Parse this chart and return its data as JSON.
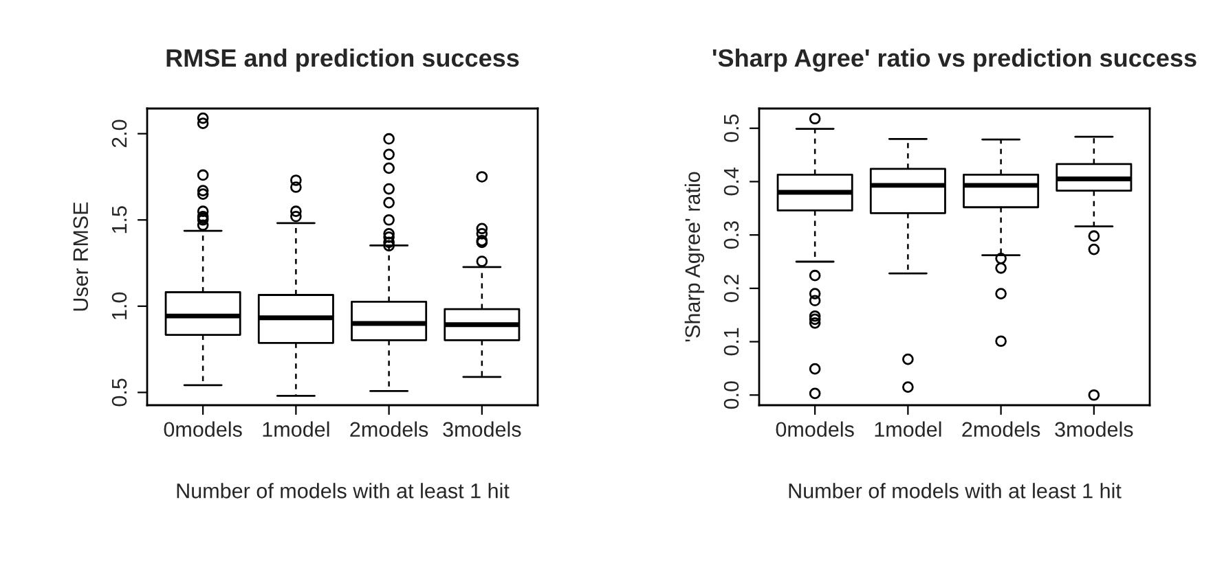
{
  "chart_data": [
    {
      "type": "box",
      "title": "RMSE and prediction success",
      "xlabel": "Number of models with at least 1 hit",
      "ylabel": "User RMSE",
      "categories": [
        "0models",
        "1model",
        "2models",
        "3models"
      ],
      "boxes": [
        {
          "low": 0.542,
          "q1": 0.834,
          "median": 0.943,
          "q3": 1.081,
          "high": 1.437,
          "outliers": [
            2.09,
            2.06,
            1.76,
            1.67,
            1.65,
            1.55,
            1.52,
            1.51,
            1.5,
            1.47
          ]
        },
        {
          "low": 0.48,
          "q1": 0.787,
          "median": 0.933,
          "q3": 1.065,
          "high": 1.482,
          "outliers": [
            1.73,
            1.69,
            1.55,
            1.52
          ]
        },
        {
          "low": 0.508,
          "q1": 0.803,
          "median": 0.9,
          "q3": 1.026,
          "high": 1.352,
          "outliers": [
            1.97,
            1.88,
            1.8,
            1.68,
            1.6,
            1.5,
            1.42,
            1.4,
            1.37,
            1.35
          ]
        },
        {
          "low": 0.59,
          "q1": 0.803,
          "median": 0.893,
          "q3": 0.983,
          "high": 1.227,
          "outliers": [
            1.75,
            1.45,
            1.42,
            1.38,
            1.37,
            1.26
          ]
        }
      ],
      "ylim": [
        0.426,
        2.146
      ],
      "yticks": [
        {
          "value": 0.5,
          "label": "0.5"
        },
        {
          "value": 1.0,
          "label": "1.0"
        },
        {
          "value": 1.5,
          "label": "1.5"
        },
        {
          "value": 2.0,
          "label": "2.0"
        }
      ],
      "grid": false,
      "legend": false
    },
    {
      "type": "box",
      "title": "'Sharp Agree' ratio vs prediction success",
      "xlabel": "Number of models with at least 1 hit",
      "ylabel": "'Sharp Agree' ratio",
      "categories": [
        "0models",
        "1model",
        "2models",
        "3models"
      ],
      "boxes": [
        {
          "low": 0.25,
          "q1": 0.346,
          "median": 0.38,
          "q3": 0.413,
          "high": 0.499,
          "outliers": [
            0.518,
            0.224,
            0.19,
            0.177,
            0.148,
            0.142,
            0.135,
            0.049,
            0.003
          ]
        },
        {
          "low": 0.228,
          "q1": 0.341,
          "median": 0.393,
          "q3": 0.424,
          "high": 0.48,
          "outliers": [
            0.067,
            0.015
          ]
        },
        {
          "low": 0.262,
          "q1": 0.352,
          "median": 0.393,
          "q3": 0.413,
          "high": 0.479,
          "outliers": [
            0.256,
            0.238,
            0.19,
            0.101
          ]
        },
        {
          "low": 0.316,
          "q1": 0.383,
          "median": 0.405,
          "q3": 0.433,
          "high": 0.484,
          "outliers": [
            0.298,
            0.273,
            0.0
          ]
        }
      ],
      "ylim": [
        -0.019,
        0.537
      ],
      "yticks": [
        {
          "value": 0.0,
          "label": "0.0"
        },
        {
          "value": 0.1,
          "label": "0.1"
        },
        {
          "value": 0.2,
          "label": "0.2"
        },
        {
          "value": 0.3,
          "label": "0.3"
        },
        {
          "value": 0.4,
          "label": "0.4"
        },
        {
          "value": 0.5,
          "label": "0.5"
        }
      ],
      "grid": false,
      "legend": false
    }
  ]
}
